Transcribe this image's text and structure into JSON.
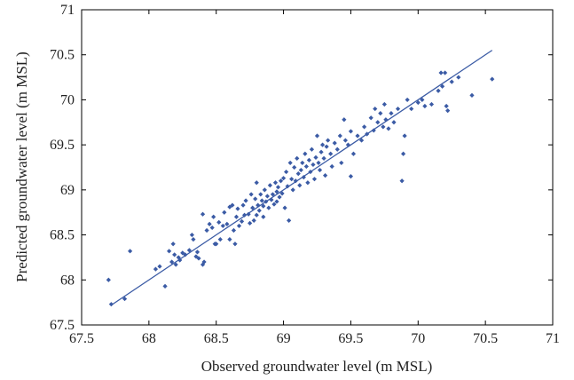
{
  "chart_data": {
    "type": "scatter",
    "title": "",
    "xlabel": "Observed groundwater level (m MSL)",
    "ylabel": "Predicted groundwater level (m MSL)",
    "xlim": [
      67.5,
      71
    ],
    "ylim": [
      67.5,
      71
    ],
    "xticks": [
      "67.5",
      "68",
      "68.5",
      "69",
      "69.5",
      "70",
      "70.5",
      "71"
    ],
    "yticks": [
      "67.5",
      "68",
      "68.5",
      "69",
      "69.5",
      "70",
      "70.5",
      "71"
    ],
    "grid": false,
    "marker_color": "#3b5ba5",
    "line_color": "#3b5ba5",
    "fit_line": {
      "x": [
        67.72,
        70.55
      ],
      "y": [
        67.72,
        70.55
      ]
    },
    "series": [
      {
        "points": [
          [
            67.7,
            68.0
          ],
          [
            67.72,
            67.73
          ],
          [
            67.82,
            67.79
          ],
          [
            67.86,
            68.32
          ],
          [
            68.05,
            68.12
          ],
          [
            68.08,
            68.15
          ],
          [
            68.12,
            67.93
          ],
          [
            68.15,
            68.32
          ],
          [
            68.17,
            68.2
          ],
          [
            68.18,
            68.4
          ],
          [
            68.19,
            68.28
          ],
          [
            68.2,
            68.17
          ],
          [
            68.22,
            68.25
          ],
          [
            68.23,
            68.22
          ],
          [
            68.25,
            68.3
          ],
          [
            68.27,
            68.28
          ],
          [
            68.3,
            68.33
          ],
          [
            68.32,
            68.5
          ],
          [
            68.33,
            68.45
          ],
          [
            68.35,
            68.26
          ],
          [
            68.36,
            68.31
          ],
          [
            68.37,
            68.24
          ],
          [
            68.4,
            68.17
          ],
          [
            68.4,
            68.73
          ],
          [
            68.41,
            68.2
          ],
          [
            68.43,
            68.55
          ],
          [
            68.45,
            68.62
          ],
          [
            68.47,
            68.58
          ],
          [
            68.48,
            68.7
          ],
          [
            68.49,
            68.4
          ],
          [
            68.5,
            68.4
          ],
          [
            68.52,
            68.64
          ],
          [
            68.53,
            68.45
          ],
          [
            68.55,
            68.6
          ],
          [
            68.56,
            68.75
          ],
          [
            68.58,
            68.62
          ],
          [
            68.6,
            68.81
          ],
          [
            68.6,
            68.45
          ],
          [
            68.62,
            68.83
          ],
          [
            68.63,
            68.55
          ],
          [
            68.64,
            68.4
          ],
          [
            68.65,
            68.7
          ],
          [
            68.66,
            68.79
          ],
          [
            68.67,
            68.6
          ],
          [
            68.69,
            68.65
          ],
          [
            68.7,
            68.83
          ],
          [
            68.71,
            68.72
          ],
          [
            68.72,
            68.88
          ],
          [
            68.74,
            68.73
          ],
          [
            68.75,
            68.63
          ],
          [
            68.76,
            68.95
          ],
          [
            68.77,
            68.8
          ],
          [
            68.78,
            68.66
          ],
          [
            68.79,
            68.9
          ],
          [
            68.8,
            68.72
          ],
          [
            68.8,
            69.08
          ],
          [
            68.81,
            68.83
          ],
          [
            68.82,
            68.77
          ],
          [
            68.83,
            68.95
          ],
          [
            68.84,
            68.88
          ],
          [
            68.85,
            68.7
          ],
          [
            68.85,
            68.82
          ],
          [
            68.86,
            69.0
          ],
          [
            68.87,
            68.87
          ],
          [
            68.88,
            68.93
          ],
          [
            68.89,
            68.8
          ],
          [
            68.9,
            69.05
          ],
          [
            68.91,
            68.89
          ],
          [
            68.92,
            68.95
          ],
          [
            68.93,
            68.84
          ],
          [
            68.94,
            69.08
          ],
          [
            68.95,
            68.98
          ],
          [
            68.95,
            68.87
          ],
          [
            68.96,
            69.03
          ],
          [
            68.97,
            68.92
          ],
          [
            68.98,
            69.1
          ],
          [
            68.99,
            68.96
          ],
          [
            69.0,
            69.13
          ],
          [
            69.01,
            68.8
          ],
          [
            69.02,
            69.2
          ],
          [
            69.03,
            69.04
          ],
          [
            69.04,
            68.66
          ],
          [
            69.05,
            69.3
          ],
          [
            69.06,
            69.12
          ],
          [
            69.07,
            69.0
          ],
          [
            69.08,
            69.25
          ],
          [
            69.09,
            69.1
          ],
          [
            69.1,
            69.35
          ],
          [
            69.11,
            69.18
          ],
          [
            69.12,
            69.05
          ],
          [
            69.13,
            69.22
          ],
          [
            69.14,
            69.3
          ],
          [
            69.15,
            69.14
          ],
          [
            69.16,
            69.4
          ],
          [
            69.17,
            69.26
          ],
          [
            69.18,
            69.08
          ],
          [
            69.19,
            69.33
          ],
          [
            69.2,
            69.2
          ],
          [
            69.21,
            69.45
          ],
          [
            69.22,
            69.28
          ],
          [
            69.23,
            69.12
          ],
          [
            69.24,
            69.36
          ],
          [
            69.25,
            69.6
          ],
          [
            69.26,
            69.3
          ],
          [
            69.27,
            69.22
          ],
          [
            69.28,
            69.42
          ],
          [
            69.29,
            69.5
          ],
          [
            69.3,
            69.35
          ],
          [
            69.31,
            69.16
          ],
          [
            69.32,
            69.48
          ],
          [
            69.33,
            69.55
          ],
          [
            69.35,
            69.4
          ],
          [
            69.36,
            69.26
          ],
          [
            69.38,
            69.52
          ],
          [
            69.4,
            69.45
          ],
          [
            69.42,
            69.6
          ],
          [
            69.43,
            69.3
          ],
          [
            69.45,
            69.78
          ],
          [
            69.46,
            69.55
          ],
          [
            69.48,
            69.5
          ],
          [
            69.5,
            69.65
          ],
          [
            69.5,
            69.15
          ],
          [
            69.52,
            69.4
          ],
          [
            69.55,
            69.6
          ],
          [
            69.58,
            69.55
          ],
          [
            69.6,
            69.7
          ],
          [
            69.62,
            69.62
          ],
          [
            69.65,
            69.8
          ],
          [
            69.67,
            69.66
          ],
          [
            69.68,
            69.9
          ],
          [
            69.7,
            69.75
          ],
          [
            69.72,
            69.85
          ],
          [
            69.74,
            69.7
          ],
          [
            69.75,
            69.95
          ],
          [
            69.76,
            69.78
          ],
          [
            69.78,
            69.68
          ],
          [
            69.8,
            69.85
          ],
          [
            69.82,
            69.75
          ],
          [
            69.85,
            69.9
          ],
          [
            69.88,
            69.1
          ],
          [
            69.89,
            69.4
          ],
          [
            69.9,
            69.6
          ],
          [
            69.92,
            70.0
          ],
          [
            69.95,
            69.9
          ],
          [
            70.0,
            69.97
          ],
          [
            70.03,
            70.0
          ],
          [
            70.05,
            69.93
          ],
          [
            70.1,
            69.95
          ],
          [
            70.15,
            70.1
          ],
          [
            70.17,
            70.3
          ],
          [
            70.18,
            70.15
          ],
          [
            70.2,
            70.3
          ],
          [
            70.21,
            69.93
          ],
          [
            70.22,
            69.88
          ],
          [
            70.25,
            70.2
          ],
          [
            70.3,
            70.25
          ],
          [
            70.4,
            70.05
          ],
          [
            70.55,
            70.23
          ]
        ]
      }
    ]
  }
}
